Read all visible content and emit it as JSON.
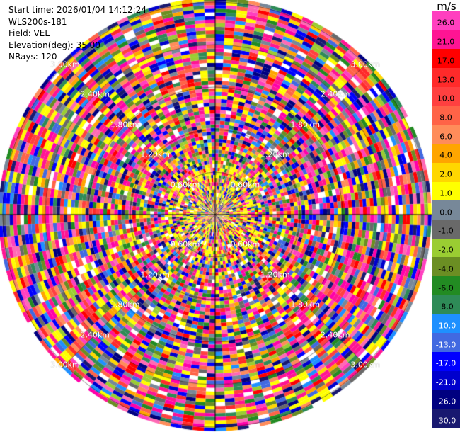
{
  "info": {
    "start_time": "Start time: 2026/01/04 14:12:24",
    "instrument": "WLS200s-181",
    "field": "Field: VEL",
    "elevation": "Elevation(deg): 35.00",
    "nrays": "NRays: 120"
  },
  "rings": [
    {
      "label": "0.60km",
      "r_km": 0.6
    },
    {
      "label": "1.20km",
      "r_km": 1.2
    },
    {
      "label": "1.80km",
      "r_km": 1.8
    },
    {
      "label": "2.40km",
      "r_km": 2.4
    },
    {
      "label": "3.00km",
      "r_km": 3.0
    }
  ],
  "colorbar": {
    "unit": "m/s",
    "ticks": [
      "26.0",
      "21.0",
      "17.0",
      "13.0",
      "10.0",
      "8.0",
      "6.0",
      "4.0",
      "2.0",
      "1.0",
      "0.0",
      "-1.0",
      "-2.0",
      "-4.0",
      "-6.0",
      "-8.0",
      "-10.0",
      "-13.0",
      "-17.0",
      "-21.0",
      "-26.0",
      "-30.0"
    ],
    "colors": [
      "#ff3fbf",
      "#ff1493",
      "#ff0000",
      "#ff2a2a",
      "#ff4040",
      "#ff6347",
      "#ff8c5a",
      "#ffa500",
      "#ffd700",
      "#ffff00",
      "#778899",
      "#696969",
      "#9acd32",
      "#6b8e23",
      "#228b22",
      "#2e8b57",
      "#1e90ff",
      "#4169e1",
      "#0000ff",
      "#0000cd",
      "#000080",
      "#191970"
    ]
  }
}
